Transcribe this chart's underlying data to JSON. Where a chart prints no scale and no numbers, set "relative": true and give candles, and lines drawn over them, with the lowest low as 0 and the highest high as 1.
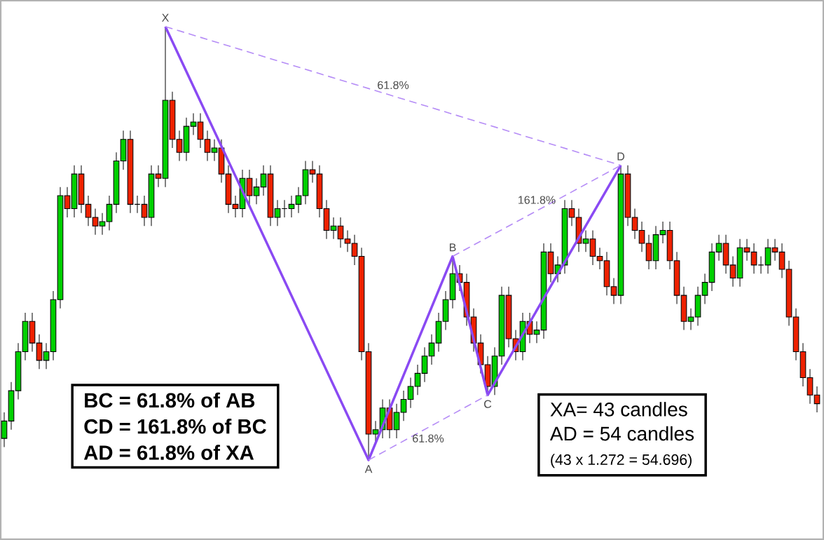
{
  "chart_data": {
    "type": "candlestick",
    "relative": true,
    "categories": [
      null,
      null,
      null,
      null,
      null,
      null,
      null,
      null,
      null,
      null,
      null,
      null,
      null,
      null,
      null,
      null,
      null,
      null,
      null,
      null,
      null,
      null,
      null,
      null,
      null,
      null,
      null,
      null,
      null,
      null,
      null,
      null,
      null,
      null,
      null,
      null,
      null,
      null,
      null,
      null,
      null,
      null,
      null,
      null,
      null,
      null,
      null,
      null,
      null,
      null,
      null,
      null,
      null,
      null,
      null,
      null,
      null,
      null,
      null,
      null,
      null,
      null,
      null,
      null,
      null,
      null,
      null,
      null,
      null,
      null,
      null,
      null,
      null,
      null,
      null,
      null,
      null,
      null,
      null,
      null,
      null,
      null,
      null,
      null,
      null,
      null,
      null,
      null,
      null,
      null,
      null,
      null,
      null,
      null,
      null,
      null,
      null,
      null,
      null,
      null,
      null,
      null,
      null,
      null,
      null,
      null,
      null,
      null,
      null,
      null,
      null,
      null,
      null,
      null,
      null,
      null,
      null
    ],
    "ohlc": [
      [
        0.05,
        0.11,
        0.03,
        0.09
      ],
      [
        0.09,
        0.18,
        0.07,
        0.16
      ],
      [
        0.16,
        0.27,
        0.14,
        0.25
      ],
      [
        0.25,
        0.34,
        0.23,
        0.32
      ],
      [
        0.32,
        0.34,
        0.25,
        0.27
      ],
      [
        0.27,
        0.29,
        0.21,
        0.23
      ],
      [
        0.23,
        0.27,
        0.21,
        0.25
      ],
      [
        0.25,
        0.39,
        0.23,
        0.37
      ],
      [
        0.37,
        0.63,
        0.35,
        0.61
      ],
      [
        0.61,
        0.63,
        0.56,
        0.58
      ],
      [
        0.58,
        0.68,
        0.56,
        0.66
      ],
      [
        0.66,
        0.68,
        0.57,
        0.59
      ],
      [
        0.59,
        0.61,
        0.54,
        0.56
      ],
      [
        0.56,
        0.58,
        0.52,
        0.54
      ],
      [
        0.54,
        0.57,
        0.52,
        0.55
      ],
      [
        0.55,
        0.61,
        0.53,
        0.59
      ],
      [
        0.59,
        0.71,
        0.57,
        0.69
      ],
      [
        0.69,
        0.76,
        0.67,
        0.74
      ],
      [
        0.74,
        0.76,
        0.57,
        0.59
      ],
      [
        0.59,
        0.61,
        0.57,
        0.59
      ],
      [
        0.59,
        0.61,
        0.54,
        0.56
      ],
      [
        0.56,
        0.68,
        0.54,
        0.66
      ],
      [
        0.66,
        0.68,
        0.63,
        0.65
      ],
      [
        0.65,
        1.0,
        0.63,
        0.83
      ],
      [
        0.83,
        0.85,
        0.72,
        0.74
      ],
      [
        0.74,
        0.76,
        0.69,
        0.71
      ],
      [
        0.71,
        0.79,
        0.69,
        0.77
      ],
      [
        0.77,
        0.8,
        0.75,
        0.78
      ],
      [
        0.78,
        0.8,
        0.72,
        0.74
      ],
      [
        0.74,
        0.76,
        0.69,
        0.71
      ],
      [
        0.71,
        0.74,
        0.69,
        0.72
      ],
      [
        0.72,
        0.74,
        0.64,
        0.66
      ],
      [
        0.66,
        0.68,
        0.57,
        0.59
      ],
      [
        0.59,
        0.61,
        0.56,
        0.58
      ],
      [
        0.58,
        0.67,
        0.56,
        0.65
      ],
      [
        0.65,
        0.67,
        0.59,
        0.61
      ],
      [
        0.61,
        0.65,
        0.59,
        0.63
      ],
      [
        0.63,
        0.68,
        0.61,
        0.66
      ],
      [
        0.66,
        0.68,
        0.54,
        0.56
      ],
      [
        0.56,
        0.6,
        0.54,
        0.58
      ],
      [
        0.58,
        0.6,
        0.56,
        0.58
      ],
      [
        0.58,
        0.61,
        0.56,
        0.59
      ],
      [
        0.59,
        0.63,
        0.57,
        0.61
      ],
      [
        0.61,
        0.69,
        0.59,
        0.67
      ],
      [
        0.67,
        0.69,
        0.64,
        0.66
      ],
      [
        0.66,
        0.68,
        0.56,
        0.58
      ],
      [
        0.58,
        0.6,
        0.51,
        0.53
      ],
      [
        0.53,
        0.56,
        0.51,
        0.54
      ],
      [
        0.54,
        0.56,
        0.49,
        0.51
      ],
      [
        0.51,
        0.53,
        0.48,
        0.5
      ],
      [
        0.5,
        0.52,
        0.45,
        0.47
      ],
      [
        0.47,
        0.49,
        0.23,
        0.25
      ],
      [
        0.25,
        0.27,
        0.0,
        0.06
      ],
      [
        0.06,
        0.09,
        0.04,
        0.07
      ],
      [
        0.07,
        0.14,
        0.05,
        0.12
      ],
      [
        0.12,
        0.14,
        0.05,
        0.07
      ],
      [
        0.07,
        0.13,
        0.05,
        0.11
      ],
      [
        0.11,
        0.16,
        0.09,
        0.14
      ],
      [
        0.14,
        0.19,
        0.12,
        0.17
      ],
      [
        0.17,
        0.22,
        0.15,
        0.2
      ],
      [
        0.2,
        0.26,
        0.18,
        0.24
      ],
      [
        0.24,
        0.29,
        0.22,
        0.27
      ],
      [
        0.27,
        0.34,
        0.25,
        0.32
      ],
      [
        0.32,
        0.39,
        0.3,
        0.37
      ],
      [
        0.37,
        0.47,
        0.35,
        0.43
      ],
      [
        0.43,
        0.45,
        0.39,
        0.41
      ],
      [
        0.41,
        0.43,
        0.31,
        0.33
      ],
      [
        0.33,
        0.35,
        0.25,
        0.27
      ],
      [
        0.27,
        0.29,
        0.2,
        0.22
      ],
      [
        0.22,
        0.24,
        0.15,
        0.17
      ],
      [
        0.17,
        0.26,
        0.15,
        0.24
      ],
      [
        0.24,
        0.4,
        0.22,
        0.38
      ],
      [
        0.38,
        0.4,
        0.26,
        0.28
      ],
      [
        0.28,
        0.3,
        0.23,
        0.25
      ],
      [
        0.25,
        0.34,
        0.23,
        0.32
      ],
      [
        0.32,
        0.34,
        0.27,
        0.29
      ],
      [
        0.29,
        0.32,
        0.27,
        0.3
      ],
      [
        0.3,
        0.5,
        0.28,
        0.48
      ],
      [
        0.48,
        0.5,
        0.41,
        0.43
      ],
      [
        0.43,
        0.47,
        0.41,
        0.45
      ],
      [
        0.45,
        0.6,
        0.43,
        0.58
      ],
      [
        0.58,
        0.6,
        0.54,
        0.56
      ],
      [
        0.56,
        0.58,
        0.48,
        0.5
      ],
      [
        0.5,
        0.53,
        0.48,
        0.51
      ],
      [
        0.51,
        0.53,
        0.45,
        0.47
      ],
      [
        0.47,
        0.49,
        0.44,
        0.46
      ],
      [
        0.46,
        0.48,
        0.38,
        0.4
      ],
      [
        0.4,
        0.42,
        0.36,
        0.38
      ],
      [
        0.38,
        0.68,
        0.36,
        0.66
      ],
      [
        0.66,
        0.68,
        0.54,
        0.56
      ],
      [
        0.56,
        0.58,
        0.51,
        0.53
      ],
      [
        0.53,
        0.55,
        0.48,
        0.5
      ],
      [
        0.5,
        0.52,
        0.44,
        0.46
      ],
      [
        0.46,
        0.54,
        0.44,
        0.52
      ],
      [
        0.52,
        0.55,
        0.5,
        0.53
      ],
      [
        0.53,
        0.55,
        0.44,
        0.46
      ],
      [
        0.46,
        0.48,
        0.36,
        0.38
      ],
      [
        0.38,
        0.4,
        0.3,
        0.32
      ],
      [
        0.32,
        0.35,
        0.3,
        0.33
      ],
      [
        0.33,
        0.4,
        0.31,
        0.38
      ],
      [
        0.38,
        0.43,
        0.36,
        0.41
      ],
      [
        0.41,
        0.5,
        0.39,
        0.48
      ],
      [
        0.48,
        0.52,
        0.46,
        0.5
      ],
      [
        0.5,
        0.52,
        0.43,
        0.45
      ],
      [
        0.45,
        0.47,
        0.4,
        0.42
      ],
      [
        0.42,
        0.51,
        0.4,
        0.49
      ],
      [
        0.49,
        0.51,
        0.46,
        0.48
      ],
      [
        0.48,
        0.5,
        0.43,
        0.45
      ],
      [
        0.45,
        0.47,
        0.43,
        0.45
      ],
      [
        0.45,
        0.51,
        0.43,
        0.49
      ],
      [
        0.49,
        0.51,
        0.46,
        0.48
      ],
      [
        0.48,
        0.5,
        0.42,
        0.44
      ],
      [
        0.44,
        0.46,
        0.31,
        0.33
      ],
      [
        0.33,
        0.35,
        0.23,
        0.25
      ],
      [
        0.25,
        0.27,
        0.17,
        0.19
      ],
      [
        0.19,
        0.21,
        0.13,
        0.15
      ],
      [
        0.15,
        0.17,
        0.11,
        0.13
      ]
    ],
    "series": [
      {
        "type": "line",
        "color": "#8a4af3",
        "values": [
          null,
          null,
          null,
          null,
          null,
          null,
          null,
          null,
          null,
          null,
          null,
          null,
          null,
          null,
          null,
          null,
          null,
          null,
          null,
          null,
          null,
          null,
          null,
          1.0,
          null,
          null,
          null,
          null,
          null,
          null,
          null,
          null,
          null,
          null,
          null,
          null,
          null,
          null,
          null,
          null,
          null,
          null,
          null,
          null,
          null,
          null,
          null,
          null,
          null,
          null,
          null,
          null,
          0.0,
          null,
          null,
          null,
          null,
          null,
          null,
          null,
          null,
          null,
          null,
          null,
          0.47,
          null,
          null,
          null,
          null,
          0.15,
          null,
          null,
          null,
          null,
          null,
          null,
          null,
          null,
          null,
          null,
          null,
          null,
          null,
          null,
          null,
          null,
          null,
          null,
          0.68,
          null,
          null,
          null,
          null,
          null,
          null,
          null,
          null,
          null,
          null,
          null,
          null,
          null,
          null,
          null,
          null,
          null,
          null,
          null,
          null,
          null,
          null,
          null,
          null,
          null,
          null,
          null,
          null
        ]
      },
      {
        "type": "line",
        "line_style": "dashed",
        "color": "#b58cf6",
        "values": [
          null,
          null,
          null,
          null,
          null,
          null,
          null,
          null,
          null,
          null,
          null,
          null,
          null,
          null,
          null,
          null,
          null,
          null,
          null,
          null,
          null,
          null,
          null,
          1.0,
          null,
          null,
          null,
          null,
          null,
          null,
          null,
          null,
          null,
          null,
          null,
          null,
          null,
          null,
          null,
          null,
          null,
          null,
          null,
          null,
          null,
          null,
          null,
          null,
          null,
          null,
          null,
          null,
          null,
          null,
          null,
          null,
          null,
          null,
          null,
          null,
          null,
          null,
          null,
          null,
          null,
          null,
          null,
          null,
          null,
          null,
          null,
          null,
          null,
          null,
          null,
          null,
          null,
          null,
          null,
          null,
          null,
          null,
          null,
          null,
          null,
          null,
          null,
          null,
          0.68,
          null,
          null,
          null,
          null,
          null,
          null,
          null,
          null,
          null,
          null,
          null,
          null,
          null,
          null,
          null,
          null,
          null,
          null,
          null,
          null,
          null,
          null,
          null,
          null,
          null,
          null,
          null,
          null
        ]
      },
      {
        "type": "line",
        "line_style": "dashed",
        "color": "#b58cf6",
        "values": [
          null,
          null,
          null,
          null,
          null,
          null,
          null,
          null,
          null,
          null,
          null,
          null,
          null,
          null,
          null,
          null,
          null,
          null,
          null,
          null,
          null,
          null,
          null,
          null,
          null,
          null,
          null,
          null,
          null,
          null,
          null,
          null,
          null,
          null,
          null,
          null,
          null,
          null,
          null,
          null,
          null,
          null,
          null,
          null,
          null,
          null,
          null,
          null,
          null,
          null,
          null,
          null,
          null,
          null,
          null,
          null,
          null,
          null,
          null,
          null,
          null,
          null,
          null,
          null,
          0.47,
          null,
          null,
          null,
          null,
          null,
          null,
          null,
          null,
          null,
          null,
          null,
          null,
          null,
          null,
          null,
          null,
          null,
          null,
          null,
          null,
          null,
          null,
          null,
          0.68,
          null,
          null,
          null,
          null,
          null,
          null,
          null,
          null,
          null,
          null,
          null,
          null,
          null,
          null,
          null,
          null,
          null,
          null,
          null,
          null,
          null,
          null,
          null,
          null,
          null,
          null,
          null,
          null
        ]
      },
      {
        "type": "line",
        "line_style": "dashed",
        "color": "#b58cf6",
        "values": [
          null,
          null,
          null,
          null,
          null,
          null,
          null,
          null,
          null,
          null,
          null,
          null,
          null,
          null,
          null,
          null,
          null,
          null,
          null,
          null,
          null,
          null,
          null,
          null,
          null,
          null,
          null,
          null,
          null,
          null,
          null,
          null,
          null,
          null,
          null,
          null,
          null,
          null,
          null,
          null,
          null,
          null,
          null,
          null,
          null,
          null,
          null,
          null,
          null,
          null,
          null,
          null,
          0.0,
          null,
          null,
          null,
          null,
          null,
          null,
          null,
          null,
          null,
          null,
          null,
          null,
          null,
          null,
          null,
          null,
          0.15,
          null,
          null,
          null,
          null,
          null,
          null,
          null,
          null,
          null,
          null,
          null,
          null,
          null,
          null,
          null,
          null,
          null,
          null,
          null,
          null,
          null,
          null,
          null,
          null,
          null,
          null,
          null,
          null,
          null,
          null,
          null,
          null,
          null,
          null,
          null,
          null,
          null,
          null,
          null,
          null,
          null,
          null,
          null,
          null,
          null,
          null,
          null
        ]
      }
    ],
    "annotations": [
      "X",
      "A",
      "B",
      "C",
      "D",
      "61.8%",
      "161.8%",
      "61.8%",
      "BC = 61.8% of AB",
      "CD = 161.8% of BC",
      "AD = 61.8% of XA",
      "XA=  43 candles",
      "AD = 54 candles",
      "(43 x 1.272 = 54.696)"
    ]
  }
}
